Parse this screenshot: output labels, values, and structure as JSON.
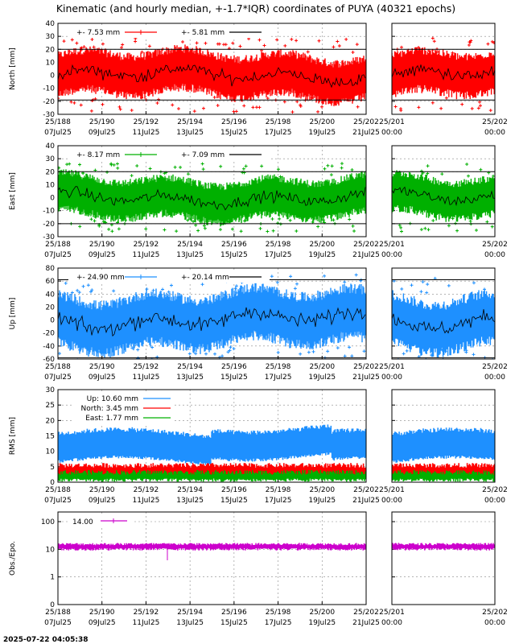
{
  "title": "Kinematic (and hourly median, +-1.7*IQR) coordinates of PUYA (40321 epochs)",
  "timestamp": "2025-07-22 04:05:38",
  "colors": {
    "north": "#ff0000",
    "east": "#00b000",
    "up": "#1e90ff",
    "obs": "#cc00cc",
    "median": "#000000"
  },
  "chart_data": [
    {
      "id": "north",
      "type": "scatter",
      "ylabel": "North [mm]",
      "ylim": [
        -30,
        40
      ],
      "yticks": [
        "40",
        "30",
        "20",
        "10",
        "0",
        "-10",
        "-20",
        "-30"
      ],
      "iqr_bounds": [
        20,
        -19
      ],
      "amplitude": 13,
      "legend": [
        "+-   7.53 mm",
        "+-   5.81 mm"
      ],
      "series": [
        {
          "name": "+-   7.53 mm",
          "color": "#ff0000"
        },
        {
          "name": "+-   5.81 mm",
          "color": "#000000"
        }
      ]
    },
    {
      "id": "east",
      "type": "scatter",
      "ylabel": "East [mm]",
      "ylim": [
        -30,
        40
      ],
      "yticks": [
        "40",
        "30",
        "20",
        "10",
        "0",
        "-10",
        "-20",
        "-30"
      ],
      "iqr_bounds": [
        20,
        -20
      ],
      "amplitude": 12,
      "legend": [
        "+-   8.17 mm",
        "+-   7.09 mm"
      ],
      "series": [
        {
          "name": "+-   8.17 mm",
          "color": "#00b000"
        },
        {
          "name": "+-   7.09 mm",
          "color": "#000000"
        }
      ]
    },
    {
      "id": "up",
      "type": "scatter",
      "ylabel": "Up [mm]",
      "ylim": [
        -60,
        80
      ],
      "yticks": [
        "80",
        "60",
        "40",
        "20",
        "0",
        "-20",
        "-40",
        "-60"
      ],
      "iqr_bounds": [
        62,
        -58
      ],
      "amplitude": 32,
      "legend": [
        "+-  24.90 mm",
        "+-  20.14 mm"
      ],
      "series": [
        {
          "name": "+-  24.90 mm",
          "color": "#1e90ff"
        },
        {
          "name": "+-  20.14 mm",
          "color": "#000000"
        }
      ]
    },
    {
      "id": "rms",
      "type": "scatter",
      "ylabel": "RMS [mm]",
      "ylim": [
        0,
        30
      ],
      "yticks": [
        "30",
        "25",
        "20",
        "15",
        "10",
        "5",
        "0"
      ],
      "legend": [
        "Up:  10.60 mm",
        "North:   3.45 mm",
        "East:   1.77 mm"
      ],
      "series": [
        {
          "name": "Up:  10.60 mm",
          "color": "#1e90ff",
          "level": 11
        },
        {
          "name": "North:   3.45 mm",
          "color": "#ff0000",
          "level": 3.5
        },
        {
          "name": "East:   1.77 mm",
          "color": "#00b000",
          "level": 1.8
        }
      ]
    },
    {
      "id": "obs",
      "type": "scatter",
      "ylabel": "Obs./Epo.",
      "yscale": "log",
      "yticks": [
        "100",
        "10",
        "1",
        "0"
      ],
      "legend": [
        "14.00"
      ],
      "series": [
        {
          "name": "14.00",
          "color": "#cc00cc",
          "level": 13
        }
      ]
    }
  ],
  "x_main_ticks": [
    {
      "doy": "25/188",
      "date": "07Jul25"
    },
    {
      "doy": "25/190",
      "date": "09Jul25"
    },
    {
      "doy": "25/192",
      "date": "11Jul25"
    },
    {
      "doy": "25/194",
      "date": "13Jul25"
    },
    {
      "doy": "25/196",
      "date": "15Jul25"
    },
    {
      "doy": "25/198",
      "date": "17Jul25"
    },
    {
      "doy": "25/200",
      "date": "19Jul25"
    },
    {
      "doy": "25/202",
      "date": "21Jul25"
    }
  ],
  "x_zoom_ticks": [
    {
      "doy": "25/201",
      "date": "00:00"
    },
    {
      "doy": "25/202",
      "date": "00:00"
    }
  ]
}
